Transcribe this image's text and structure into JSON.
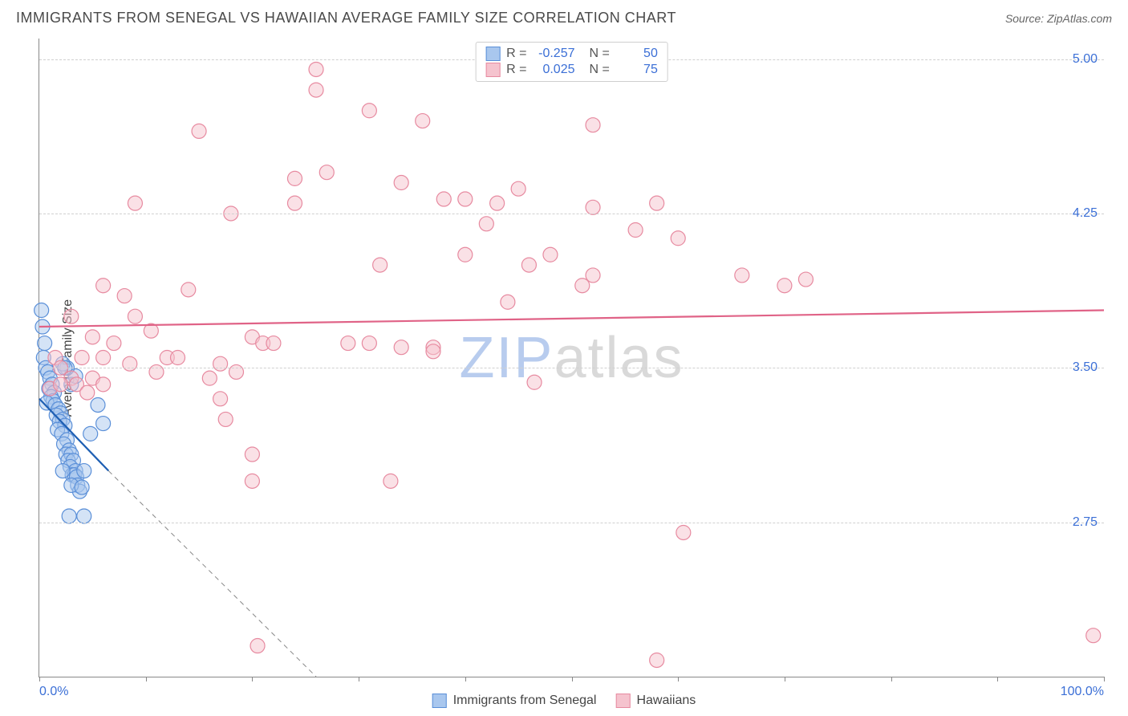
{
  "header": {
    "title": "IMMIGRANTS FROM SENEGAL VS HAWAIIAN AVERAGE FAMILY SIZE CORRELATION CHART",
    "source_prefix": "Source: ",
    "source": "ZipAtlas.com"
  },
  "watermark": {
    "zip": "ZIP",
    "atlas": "atlas"
  },
  "chart": {
    "type": "scatter",
    "background_color": "#ffffff",
    "grid_color": "#d0d0d0",
    "axis_color": "#888888",
    "ylabel": "Average Family Size",
    "label_fontsize": 16,
    "label_color": "#444444",
    "tick_color": "#3b6fd6",
    "xlim": [
      0,
      100
    ],
    "ylim": [
      2.0,
      5.1
    ],
    "y_ticks": [
      2.75,
      3.5,
      4.25,
      5.0
    ],
    "y_tick_labels": [
      "2.75",
      "3.50",
      "4.25",
      "5.00"
    ],
    "x_minor_ticks": [
      0,
      10,
      20,
      30,
      40,
      50,
      60,
      70,
      80,
      90,
      100
    ],
    "x_tick_labels": [
      {
        "x": 0,
        "label": "0.0%"
      },
      {
        "x": 100,
        "label": "100.0%"
      }
    ],
    "marker_radius": 9,
    "marker_opacity": 0.5,
    "series": [
      {
        "name": "Immigrants from Senegal",
        "fill": "#a9c7ee",
        "stroke": "#5a8fd8",
        "line_color": "#1e5fb3",
        "line_width": 2.2,
        "trend": {
          "x0": 0,
          "y0": 3.35,
          "x1": 6.5,
          "y1": 3.0
        },
        "trend_dashed_ext": {
          "x0": 6.5,
          "y0": 3.0,
          "x1": 26,
          "y1": 2.0
        },
        "points": [
          [
            0.2,
            3.78
          ],
          [
            0.3,
            3.7
          ],
          [
            0.5,
            3.62
          ],
          [
            0.4,
            3.55
          ],
          [
            0.6,
            3.5
          ],
          [
            0.8,
            3.48
          ],
          [
            1.0,
            3.45
          ],
          [
            1.2,
            3.42
          ],
          [
            0.9,
            3.4
          ],
          [
            1.4,
            3.38
          ],
          [
            1.1,
            3.36
          ],
          [
            1.3,
            3.34
          ],
          [
            0.7,
            3.33
          ],
          [
            1.5,
            3.32
          ],
          [
            1.8,
            3.3
          ],
          [
            2.0,
            3.28
          ],
          [
            1.6,
            3.27
          ],
          [
            2.2,
            3.25
          ],
          [
            1.9,
            3.24
          ],
          [
            2.4,
            3.22
          ],
          [
            1.7,
            3.2
          ],
          [
            2.1,
            3.18
          ],
          [
            2.6,
            3.15
          ],
          [
            2.3,
            3.13
          ],
          [
            2.8,
            3.1
          ],
          [
            2.5,
            3.08
          ],
          [
            3.0,
            3.08
          ],
          [
            2.7,
            3.05
          ],
          [
            3.2,
            3.05
          ],
          [
            6.0,
            3.23
          ],
          [
            2.9,
            3.02
          ],
          [
            3.4,
            3.0
          ],
          [
            3.1,
            2.98
          ],
          [
            3.3,
            2.98
          ],
          [
            3.5,
            2.97
          ],
          [
            4.2,
            3.0
          ],
          [
            5.5,
            3.32
          ],
          [
            4.8,
            3.18
          ],
          [
            3.6,
            2.93
          ],
          [
            3.8,
            2.9
          ],
          [
            3.0,
            3.42
          ],
          [
            3.4,
            3.46
          ],
          [
            2.6,
            3.5
          ],
          [
            2.2,
            3.52
          ],
          [
            2.4,
            3.5
          ],
          [
            3.0,
            2.93
          ],
          [
            4.0,
            2.92
          ],
          [
            2.8,
            2.78
          ],
          [
            4.2,
            2.78
          ],
          [
            2.2,
            3.0
          ]
        ]
      },
      {
        "name": "Hawaiians",
        "fill": "#f5c3ce",
        "stroke": "#e78aa0",
        "line_color": "#e06387",
        "line_width": 2.2,
        "trend": {
          "x0": 0,
          "y0": 3.7,
          "x1": 100,
          "y1": 3.78
        },
        "points": [
          [
            1.5,
            3.55
          ],
          [
            2.0,
            3.5
          ],
          [
            3.0,
            3.45
          ],
          [
            4.0,
            3.55
          ],
          [
            5.0,
            3.45
          ],
          [
            6.0,
            3.55
          ],
          [
            3.0,
            3.75
          ],
          [
            7.0,
            3.62
          ],
          [
            8.0,
            3.85
          ],
          [
            5.0,
            3.65
          ],
          [
            6.0,
            3.9
          ],
          [
            9.0,
            3.75
          ],
          [
            10.5,
            3.68
          ],
          [
            12.0,
            3.55
          ],
          [
            11.0,
            3.48
          ],
          [
            13.0,
            3.55
          ],
          [
            14.0,
            3.88
          ],
          [
            15.0,
            4.65
          ],
          [
            9.0,
            4.3
          ],
          [
            16.0,
            3.45
          ],
          [
            17.0,
            3.52
          ],
          [
            18.0,
            4.25
          ],
          [
            18.5,
            3.48
          ],
          [
            17.0,
            3.35
          ],
          [
            17.5,
            3.25
          ],
          [
            20.0,
            2.95
          ],
          [
            20.0,
            3.65
          ],
          [
            21.0,
            3.62
          ],
          [
            20.0,
            3.08
          ],
          [
            22.0,
            3.62
          ],
          [
            24.0,
            4.42
          ],
          [
            24.0,
            4.3
          ],
          [
            26.0,
            4.95
          ],
          [
            26.0,
            4.85
          ],
          [
            27.0,
            4.45
          ],
          [
            29.0,
            3.62
          ],
          [
            31.0,
            4.75
          ],
          [
            32.0,
            4.0
          ],
          [
            31.0,
            3.62
          ],
          [
            33.0,
            2.95
          ],
          [
            34.0,
            4.4
          ],
          [
            36.0,
            4.7
          ],
          [
            37.0,
            3.6
          ],
          [
            37.0,
            3.58
          ],
          [
            38.0,
            4.32
          ],
          [
            40.0,
            4.32
          ],
          [
            40.0,
            4.05
          ],
          [
            42.0,
            4.2
          ],
          [
            43.0,
            4.3
          ],
          [
            44.0,
            3.82
          ],
          [
            45.0,
            4.37
          ],
          [
            46.0,
            4.0
          ],
          [
            46.5,
            3.43
          ],
          [
            34.0,
            3.6
          ],
          [
            48.0,
            4.05
          ],
          [
            51.0,
            3.9
          ],
          [
            52.0,
            4.68
          ],
          [
            52.0,
            4.28
          ],
          [
            52.0,
            3.95
          ],
          [
            56.0,
            4.17
          ],
          [
            58.0,
            4.3
          ],
          [
            60.0,
            4.13
          ],
          [
            58.0,
            2.08
          ],
          [
            20.5,
            2.15
          ],
          [
            66.0,
            3.95
          ],
          [
            60.5,
            2.7
          ],
          [
            70.0,
            3.9
          ],
          [
            72.0,
            3.93
          ],
          [
            99.0,
            2.2
          ],
          [
            1.0,
            3.4
          ],
          [
            2.0,
            3.42
          ],
          [
            3.5,
            3.42
          ],
          [
            4.5,
            3.38
          ],
          [
            6.0,
            3.42
          ],
          [
            8.5,
            3.52
          ]
        ]
      }
    ]
  },
  "legend_top": {
    "rows": [
      {
        "swatch_fill": "#a9c7ee",
        "swatch_stroke": "#5a8fd8",
        "r_label": "R =",
        "r_value": "-0.257",
        "n_label": "N =",
        "n_value": "50"
      },
      {
        "swatch_fill": "#f5c3ce",
        "swatch_stroke": "#e78aa0",
        "r_label": "R =",
        "r_value": "0.025",
        "n_label": "N =",
        "n_value": "75"
      }
    ]
  },
  "legend_bottom": {
    "items": [
      {
        "swatch_fill": "#a9c7ee",
        "swatch_stroke": "#5a8fd8",
        "label": "Immigrants from Senegal"
      },
      {
        "swatch_fill": "#f5c3ce",
        "swatch_stroke": "#e78aa0",
        "label": "Hawaiians"
      }
    ]
  }
}
